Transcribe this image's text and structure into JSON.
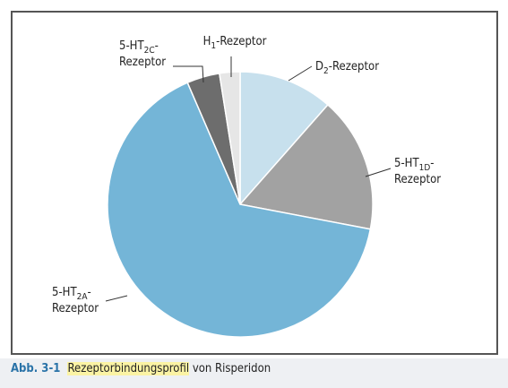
{
  "chart_data": {
    "type": "pie",
    "categories": [
      "D2-Rezeptor",
      "5-HT1D-Rezeptor",
      "5-HT2A-Rezeptor",
      "5-HT2C-Rezeptor",
      "H1-Rezeptor"
    ],
    "values": [
      11.5,
      16.5,
      65.5,
      4,
      2.5
    ],
    "colors": [
      "#c7e0ed",
      "#a2a2a2",
      "#74b5d7",
      "#6d6d6d",
      "#e6e6e6"
    ]
  },
  "caption": {
    "label": "Abb. 3-1",
    "highlight": "Rezeptorbindungsprofil",
    "text": "von Risperidon"
  }
}
